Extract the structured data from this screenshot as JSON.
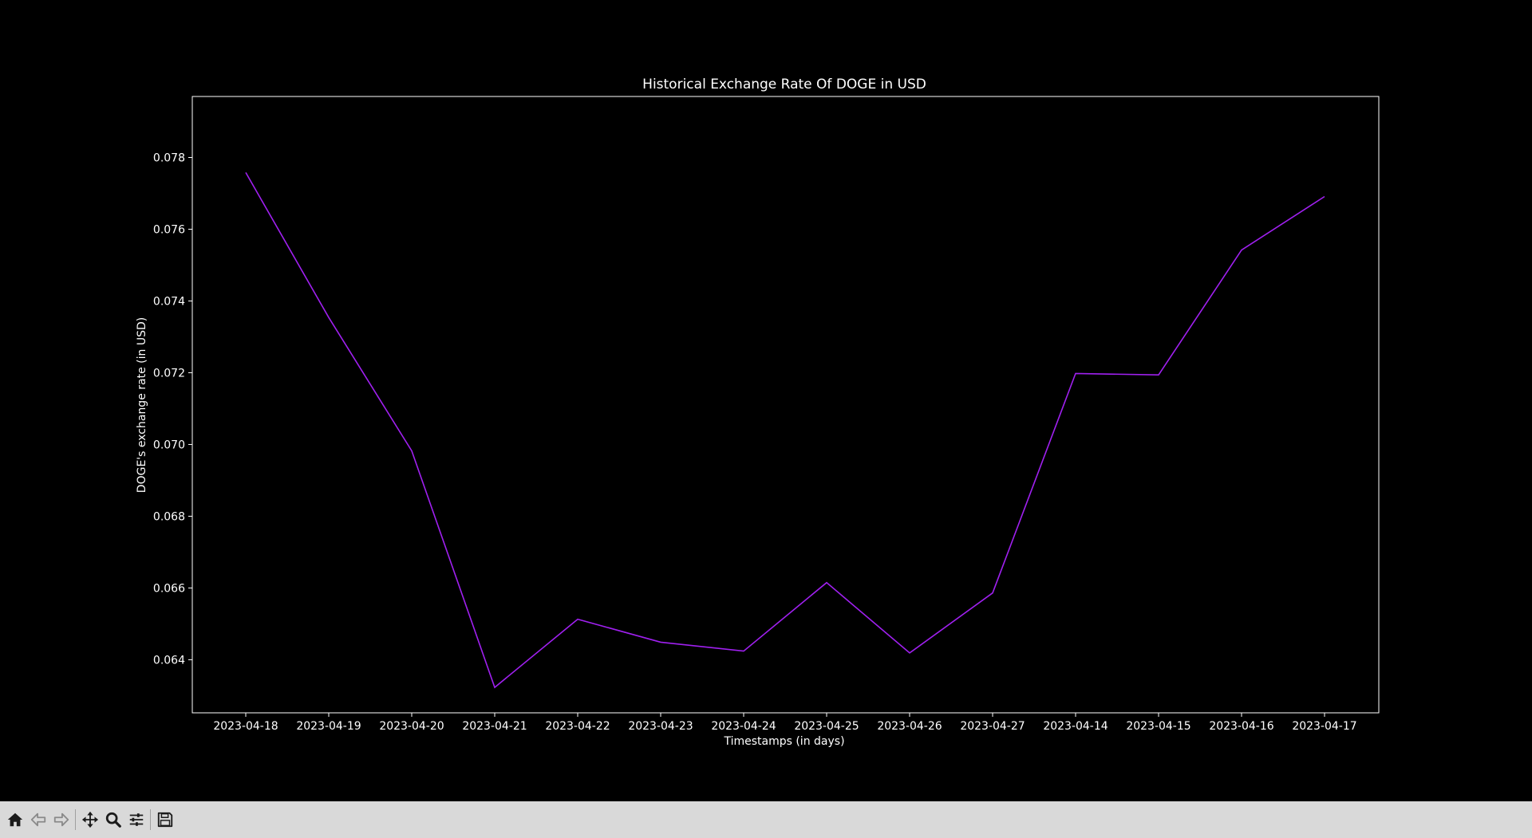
{
  "chart_data": {
    "type": "line",
    "title": "Historical Exchange Rate Of DOGE in USD",
    "xlabel": "Timestamps (in days)",
    "ylabel": "DOGE's exchange rate (in USD)",
    "categories": [
      "2023-04-18",
      "2023-04-19",
      "2023-04-20",
      "2023-04-21",
      "2023-04-22",
      "2023-04-23",
      "2023-04-24",
      "2023-04-25",
      "2023-04-26",
      "2023-04-27",
      "2023-04-14",
      "2023-04-15",
      "2023-04-16",
      "2023-04-17"
    ],
    "series": [
      {
        "values": [
          0.07758,
          0.07354,
          0.06982,
          0.06323,
          0.06513,
          0.06449,
          0.06424,
          0.06615,
          0.06419,
          0.06586,
          0.07198,
          0.07194,
          0.07542,
          0.07691
        ],
        "color": "#a020f0"
      }
    ],
    "ylim": [
      0.06252,
      0.0797
    ],
    "yticks": [
      0.064,
      0.066,
      0.068,
      0.07,
      0.072,
      0.074,
      0.076,
      0.078
    ],
    "ytick_labels": [
      "0.064",
      "0.066",
      "0.068",
      "0.070",
      "0.072",
      "0.074",
      "0.076",
      "0.078"
    ],
    "grid": false,
    "legend": "none",
    "background": "#000000",
    "axis_color": "#ffffff"
  },
  "toolbar": {
    "buttons": [
      {
        "name": "home-button",
        "icon": "home-icon"
      },
      {
        "name": "back-button",
        "icon": "back-arrow-icon"
      },
      {
        "name": "forward-button",
        "icon": "forward-arrow-icon"
      },
      {
        "name": "pan-button",
        "icon": "move-icon"
      },
      {
        "name": "zoom-button",
        "icon": "magnifier-icon"
      },
      {
        "name": "configure-subplots-button",
        "icon": "sliders-icon"
      },
      {
        "name": "save-button",
        "icon": "floppy-disk-icon"
      }
    ]
  }
}
